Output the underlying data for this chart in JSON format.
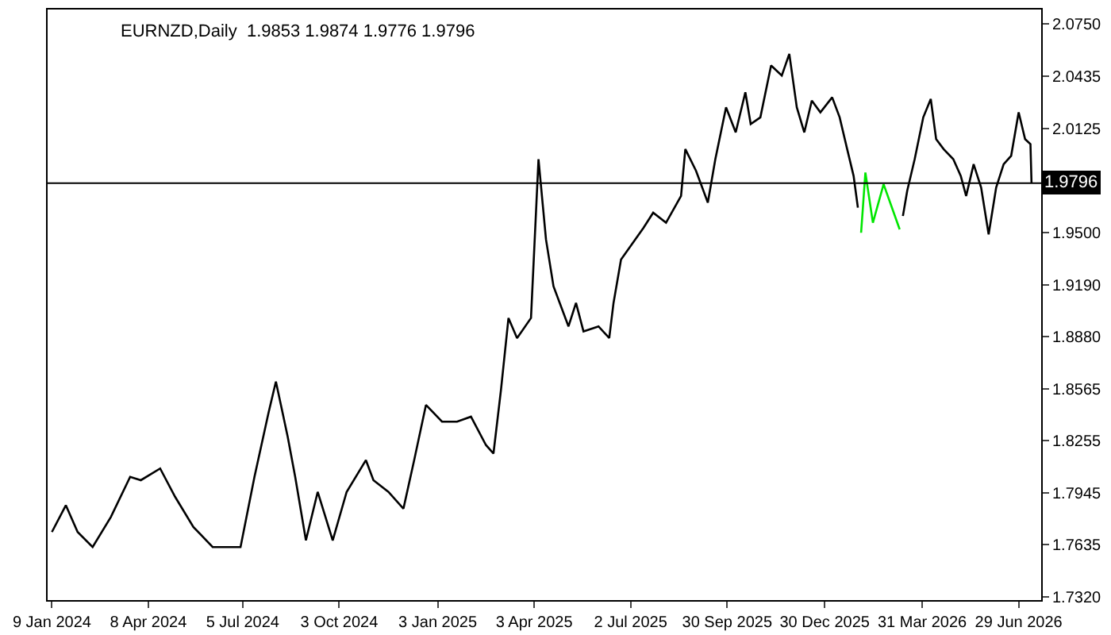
{
  "chart_data": {
    "type": "line",
    "title": "EURNZD,Daily  1.9853 1.9874 1.9776 1.9796",
    "series": [
      {
        "color": "#000000",
        "x": [
          "2024-01-09",
          "2024-01-22",
          "2024-02-02",
          "2024-02-16",
          "2024-03-04",
          "2024-03-22",
          "2024-04-01",
          "2024-04-19",
          "2024-05-03",
          "2024-05-20",
          "2024-06-07",
          "2024-07-03",
          "2024-07-16",
          "2024-07-29",
          "2024-08-05",
          "2024-08-16",
          "2024-08-23",
          "2024-09-02",
          "2024-09-13",
          "2024-09-27",
          "2024-10-10",
          "2024-10-28",
          "2024-11-04",
          "2024-11-18",
          "2024-12-02",
          "2024-12-12",
          "2024-12-23",
          "2025-01-07",
          "2025-01-21",
          "2025-02-03",
          "2025-02-17",
          "2025-02-24",
          "2025-03-03",
          "2025-03-10",
          "2025-03-18",
          "2025-03-31",
          "2025-04-07",
          "2025-04-14",
          "2025-04-21",
          "2025-05-05",
          "2025-05-12",
          "2025-05-19",
          "2025-06-02",
          "2025-06-12",
          "2025-06-16",
          "2025-06-23",
          "2025-07-14",
          "2025-07-23",
          "2025-08-04",
          "2025-08-18",
          "2025-08-22",
          "2025-09-01",
          "2025-09-12",
          "2025-09-19",
          "2025-09-29",
          "2025-10-08",
          "2025-10-17",
          "2025-10-22",
          "2025-10-31",
          "2025-11-10",
          "2025-11-20",
          "2025-11-27",
          "2025-12-04",
          "2025-12-11",
          "2025-12-18",
          "2025-12-26",
          "2026-01-06",
          "2026-01-13",
          "2026-01-20",
          "2026-01-26",
          "2026-01-30",
          "2026-02-15",
          "2026-03-13",
          "2026-03-17",
          "2026-03-24",
          "2026-04-01",
          "2026-04-08",
          "2026-04-13",
          "2026-04-20",
          "2026-04-29",
          "2026-05-06",
          "2026-05-11",
          "2026-05-18",
          "2026-05-25",
          "2026-06-01",
          "2026-06-08",
          "2026-06-15",
          "2026-06-22",
          "2026-06-29",
          "2026-07-05",
          "2026-07-10",
          "2026-07-11"
        ],
        "values": [
          1.771,
          1.787,
          1.771,
          1.762,
          1.78,
          1.804,
          1.802,
          1.809,
          1.792,
          1.774,
          1.762,
          1.762,
          1.804,
          1.842,
          1.861,
          1.828,
          1.804,
          1.766,
          1.795,
          1.766,
          1.795,
          1.814,
          1.802,
          1.795,
          1.785,
          1.814,
          1.847,
          1.837,
          1.837,
          1.84,
          1.823,
          1.818,
          1.856,
          1.899,
          1.887,
          1.899,
          1.994,
          1.946,
          1.918,
          1.894,
          1.908,
          1.891,
          1.894,
          1.887,
          1.908,
          1.934,
          1.953,
          1.962,
          1.956,
          1.972,
          2.0,
          1.987,
          1.968,
          1.994,
          2.025,
          2.01,
          2.034,
          2.015,
          2.019,
          2.05,
          2.044,
          2.057,
          2.025,
          2.01,
          2.029,
          2.022,
          2.031,
          2.019,
          2.0,
          1.984,
          1.965,
          null,
          1.96,
          1.975,
          1.994,
          2.019,
          2.03,
          2.006,
          2.0,
          1.994,
          1.984,
          1.972,
          1.991,
          1.977,
          1.949,
          1.977,
          1.991,
          1.996,
          2.022,
          2.006,
          2.003,
          1.98
        ]
      },
      {
        "color": "#00e600",
        "x": [
          "2026-02-02",
          "2026-02-06",
          "2026-02-13",
          "2026-02-23",
          "2026-03-10"
        ],
        "values": [
          1.95,
          1.986,
          1.956,
          1.979,
          1.952
        ]
      }
    ],
    "xlim": [
      "2024-01-05",
      "2026-07-20"
    ],
    "xticks": [
      {
        "value": "2024-01-09",
        "label": "9 Jan 2024"
      },
      {
        "value": "2024-04-08",
        "label": "8 Apr 2024"
      },
      {
        "value": "2024-07-05",
        "label": "5 Jul 2024"
      },
      {
        "value": "2024-10-03",
        "label": "3 Oct 2024"
      },
      {
        "value": "2025-01-03",
        "label": "3 Jan 2025"
      },
      {
        "value": "2025-04-03",
        "label": "3 Apr 2025"
      },
      {
        "value": "2025-07-02",
        "label": "2 Jul 2025"
      },
      {
        "value": "2025-09-30",
        "label": "30 Sep 2025"
      },
      {
        "value": "2025-12-30",
        "label": "30 Dec 2025"
      },
      {
        "value": "2026-03-31",
        "label": "31 Mar 2026"
      },
      {
        "value": "2026-06-29",
        "label": "29 Jun 2026"
      }
    ],
    "ylim": [
      1.7303,
      2.0835
    ],
    "yticks": [
      {
        "value": 2.075,
        "label": "2.0750"
      },
      2.0435,
      2.0125,
      {
        "value": 1.95,
        "label": "1.9500"
      },
      {
        "value": 1.919,
        "label": "1.9190"
      },
      {
        "value": 1.888,
        "label": "1.8880"
      },
      1.8565,
      1.8255,
      1.7945,
      1.7635,
      {
        "value": 1.732,
        "label": "1.7320"
      }
    ],
    "ref_lines": [
      {
        "axis": "y",
        "value": 1.9796,
        "label": "1.9796",
        "color": "#000000"
      }
    ],
    "grid": false,
    "marker": "none",
    "line_style": "solid"
  }
}
